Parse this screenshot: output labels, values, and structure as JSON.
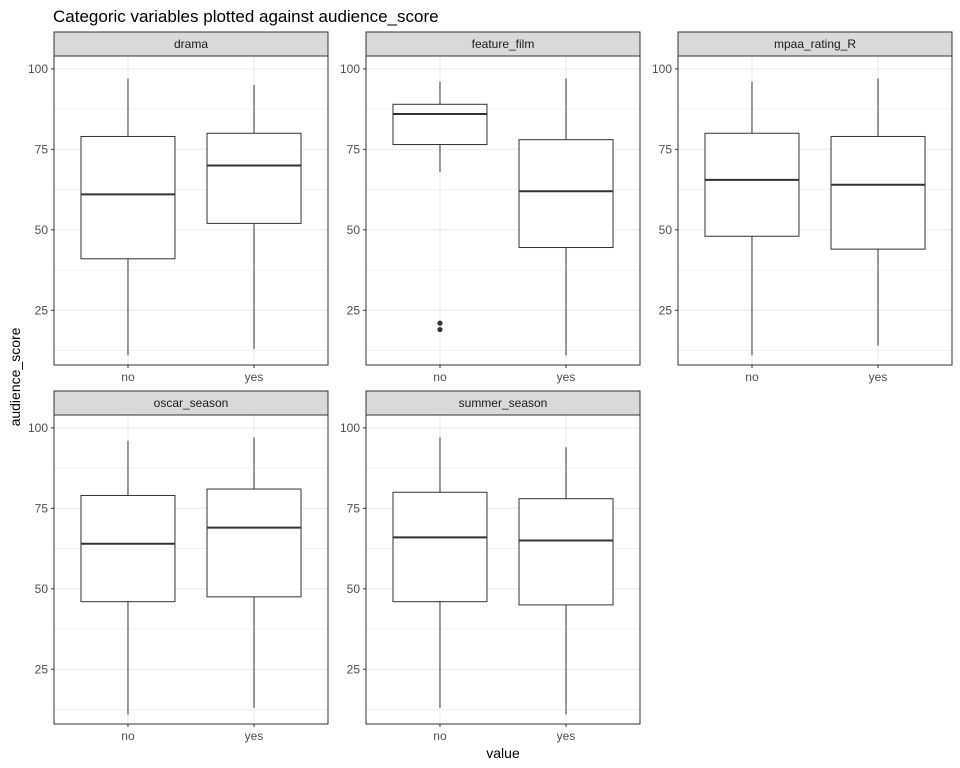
{
  "chart_data": {
    "type": "boxplot",
    "title": "Categoric variables plotted against audience_score",
    "xlabel": "value",
    "ylabel": "audience_score",
    "categories": [
      "no",
      "yes"
    ],
    "ylim": [
      8,
      104
    ],
    "yticks": [
      25,
      50,
      75,
      100
    ],
    "grid": true,
    "facet_layout": "3 columns, 2 rows",
    "colors": {
      "strip_fill": "#d9d9d9",
      "border": "#333333",
      "grid": "#ebebeb",
      "box_line": "#333333"
    },
    "panels": [
      {
        "name": "drama",
        "boxes": [
          {
            "category": "no",
            "min": 11,
            "q1": 41,
            "median": 61,
            "q3": 79,
            "max": 97,
            "outliers": []
          },
          {
            "category": "yes",
            "min": 13,
            "q1": 52,
            "median": 70,
            "q3": 80,
            "max": 95,
            "outliers": []
          }
        ]
      },
      {
        "name": "feature_film",
        "boxes": [
          {
            "category": "no",
            "min": 68,
            "q1": 76.5,
            "median": 86,
            "q3": 89,
            "max": 96,
            "outliers": [
              19,
              21
            ]
          },
          {
            "category": "yes",
            "min": 11,
            "q1": 44.5,
            "median": 62,
            "q3": 78,
            "max": 97,
            "outliers": []
          }
        ]
      },
      {
        "name": "mpaa_rating_R",
        "boxes": [
          {
            "category": "no",
            "min": 11,
            "q1": 48,
            "median": 65.5,
            "q3": 80,
            "max": 96,
            "outliers": []
          },
          {
            "category": "yes",
            "min": 14,
            "q1": 44,
            "median": 64,
            "q3": 79,
            "max": 97,
            "outliers": []
          }
        ]
      },
      {
        "name": "oscar_season",
        "boxes": [
          {
            "category": "no",
            "min": 11,
            "q1": 46,
            "median": 64,
            "q3": 79,
            "max": 96,
            "outliers": []
          },
          {
            "category": "yes",
            "min": 13,
            "q1": 47.5,
            "median": 69,
            "q3": 81,
            "max": 97,
            "outliers": []
          }
        ]
      },
      {
        "name": "summer_season",
        "boxes": [
          {
            "category": "no",
            "min": 13,
            "q1": 46,
            "median": 66,
            "q3": 80,
            "max": 97,
            "outliers": []
          },
          {
            "category": "yes",
            "min": 11,
            "q1": 45,
            "median": 65,
            "q3": 78,
            "max": 94,
            "outliers": []
          }
        ]
      }
    ]
  }
}
